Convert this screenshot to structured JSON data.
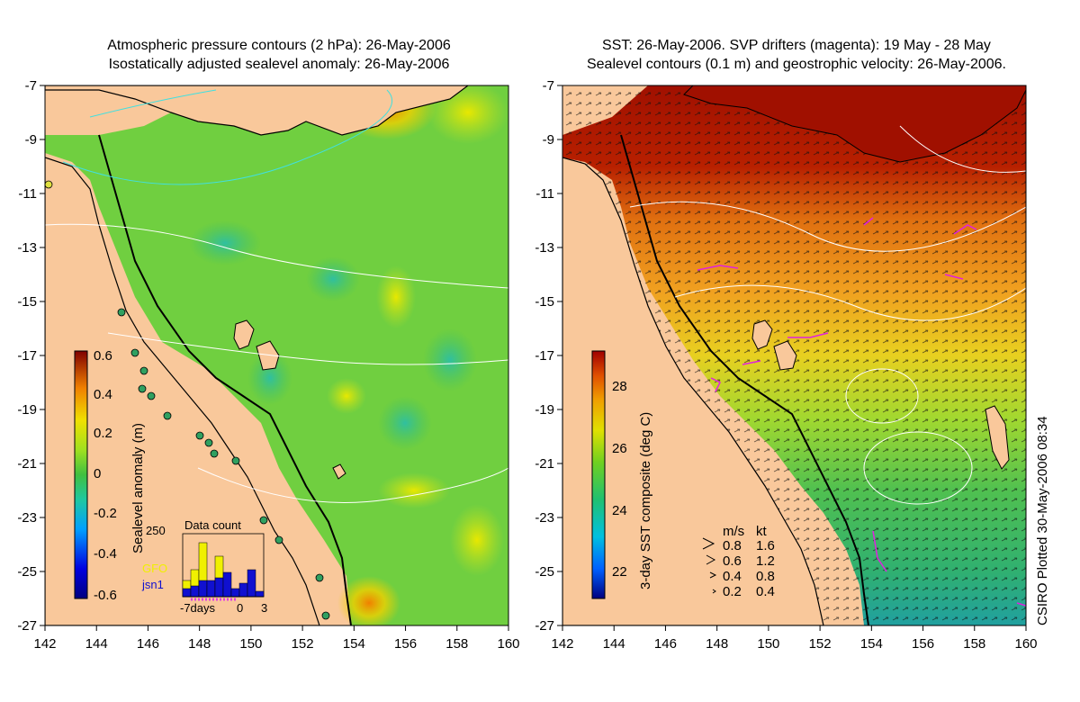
{
  "left_panel": {
    "title_line1": "Atmospheric pressure contours (2 hPa): 26-May-2006",
    "title_line2": "Isostatically adjusted sealevel anomaly: 26-May-2006",
    "colorbar": {
      "label": "Sealevel anomaly (m)",
      "ticks": [
        "0.6",
        "0.4",
        "0.2",
        "0",
        "-0.2",
        "-0.4",
        "-0.6"
      ],
      "range": [
        -0.6,
        0.6
      ]
    },
    "data_count": {
      "title": "Data count",
      "max_label": "250",
      "legend_gfo": "GFO",
      "legend_jsn1": "jsn1",
      "gfo_color": "#f0f000",
      "jsn1_color": "#1010d0",
      "x_ticks": [
        "-7days",
        "0",
        "3"
      ],
      "bars_gfo": [
        0.3,
        0.5,
        1.0,
        0.2,
        0.75,
        0.15,
        0.1,
        0.05,
        0.0,
        0.0
      ],
      "bars_jsn1": [
        0.15,
        0.2,
        0.3,
        0.3,
        0.35,
        0.45,
        0.15,
        0.25,
        0.5,
        0.1
      ]
    }
  },
  "right_panel": {
    "title_line1": "SST: 26-May-2006. SVP drifters (magenta): 19 May - 28 May",
    "title_line2": "Sealevel contours (0.1 m) and geostrophic velocity: 26-May-2006.",
    "colorbar": {
      "label": "3-day SST composite (deg C)",
      "ticks": [
        "28",
        "26",
        "24",
        "22"
      ],
      "range": [
        21,
        29
      ]
    },
    "speed_legend": {
      "header_ms": "m/s",
      "header_kt": "kt",
      "rows": [
        {
          "ms": "0.8",
          "kt": "1.6"
        },
        {
          "ms": "0.6",
          "kt": "1.2"
        },
        {
          "ms": "0.4",
          "kt": "0.8"
        },
        {
          "ms": "0.2",
          "kt": "0.4"
        }
      ]
    }
  },
  "axes": {
    "lat_ticks": [
      "-7",
      "-9",
      "-11",
      "-13",
      "-15",
      "-17",
      "-19",
      "-21",
      "-23",
      "-25",
      "-27"
    ],
    "lon_ticks": [
      "142",
      "144",
      "146",
      "148",
      "150",
      "152",
      "154",
      "156",
      "158",
      "160"
    ],
    "lon_range": [
      142,
      160
    ],
    "lat_range": [
      -27,
      -7
    ]
  },
  "credit": "CSIRO Plotted 30-May-2006 08:34",
  "colors": {
    "land": "#f9c89b",
    "sla_green": "#6fcf3f",
    "sst_warm": "#a01000"
  }
}
